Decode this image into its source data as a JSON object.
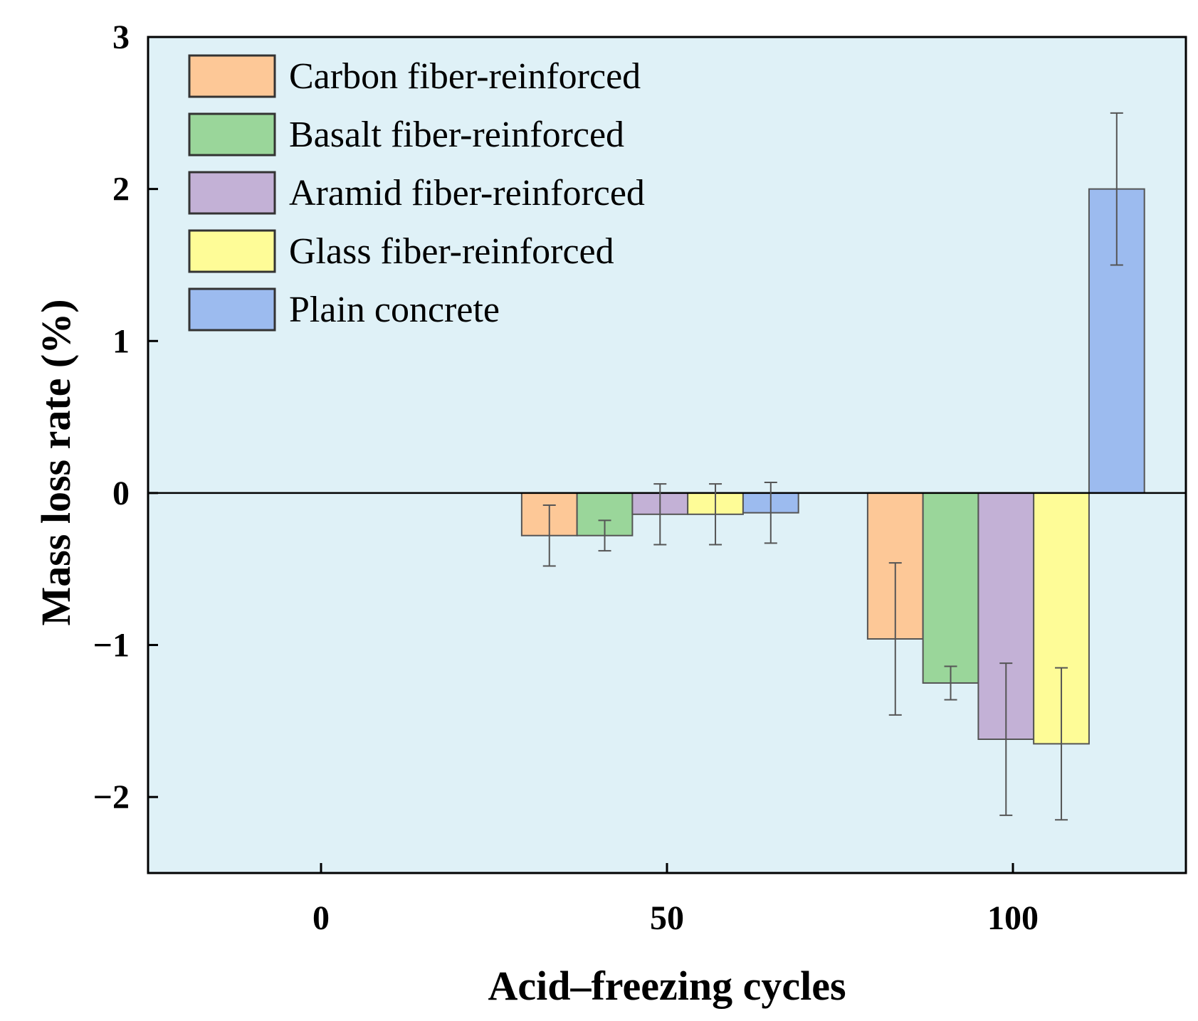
{
  "chart_data": {
    "type": "bar",
    "xlabel": "Acid–freezing cycles",
    "ylabel": "Mass loss rate (%)",
    "x_ticks": [
      "0",
      "50",
      "100"
    ],
    "y_ticks": [
      "3",
      "2",
      "1",
      "0",
      "−1",
      "−2"
    ],
    "xlim": [
      -25,
      125
    ],
    "ylim": [
      -2.5,
      3
    ],
    "categories": [
      0,
      50,
      100
    ],
    "legend_position": "top-left",
    "plot_background": "#dff1f7",
    "series": [
      {
        "name": "Carbon fiber-reinforced",
        "color": "#fdc897",
        "values": [
          0,
          -0.28,
          -0.96
        ],
        "errors": [
          0,
          0.2,
          0.5
        ]
      },
      {
        "name": "Basalt fiber-reinforced",
        "color": "#9ad69a",
        "values": [
          0,
          -0.28,
          -1.25
        ],
        "errors": [
          0,
          0.1,
          0.11
        ]
      },
      {
        "name": "Aramid fiber-reinforced",
        "color": "#c3b1d6",
        "values": [
          0,
          -0.14,
          -1.62
        ],
        "errors": [
          0,
          0.2,
          0.5
        ]
      },
      {
        "name": "Glass fiber-reinforced",
        "color": "#fefc97",
        "values": [
          0,
          -0.14,
          -1.65
        ],
        "errors": [
          0,
          0.2,
          0.5
        ]
      },
      {
        "name": "Plain concrete",
        "color": "#9cbbef",
        "values": [
          0,
          -0.13,
          2.0
        ],
        "errors": [
          0,
          0.2,
          0.5
        ]
      }
    ]
  }
}
